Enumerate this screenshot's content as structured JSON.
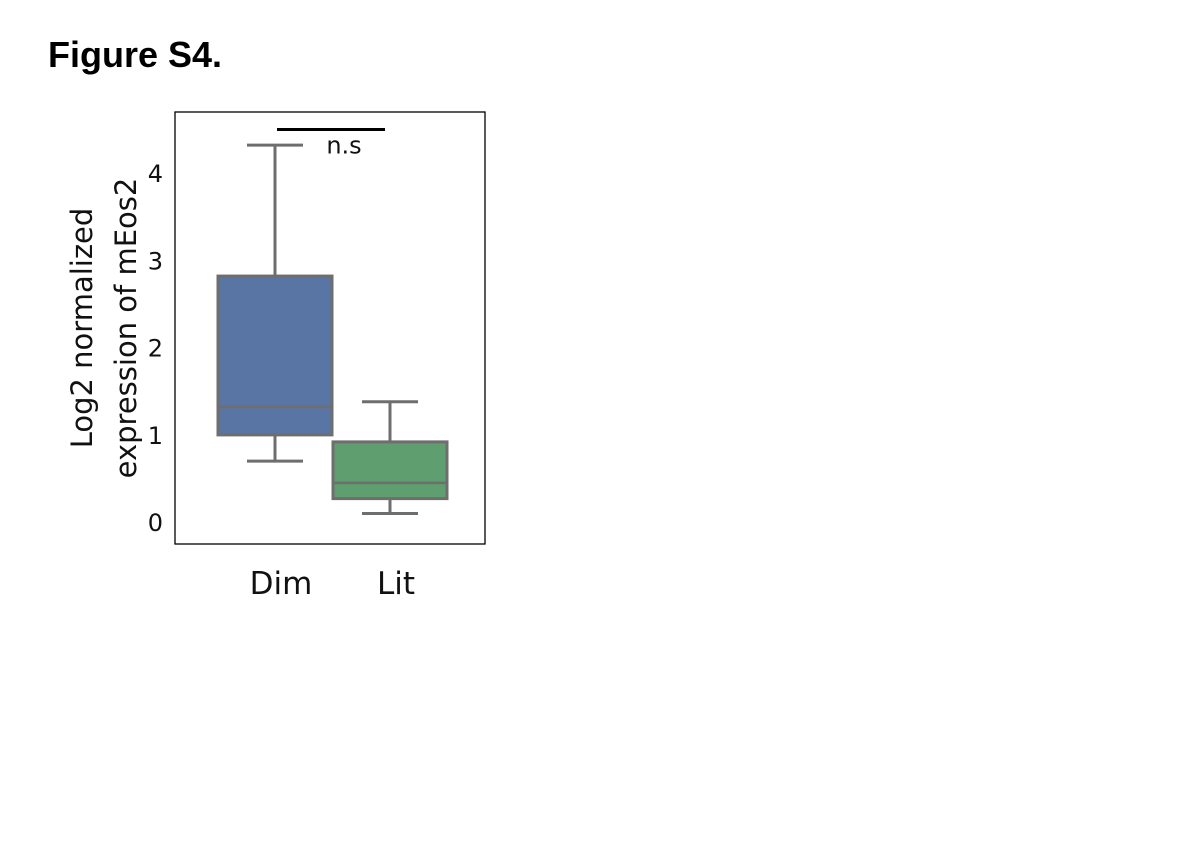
{
  "figure": {
    "title": "Figure S4."
  },
  "chart_data": {
    "type": "box",
    "title": "",
    "ylabel": [
      "Log2 normalized",
      "expression of mEos2"
    ],
    "xlabel": "",
    "ylim": [
      -0.25,
      4.7
    ],
    "yticks": [
      0,
      1,
      2,
      3,
      4
    ],
    "categories": [
      "Dim",
      "Lit"
    ],
    "colors": [
      "#5875A4",
      "#5F9E6E"
    ],
    "outline_color": "#6e6e6e",
    "boxes": [
      {
        "name": "Dim",
        "whisker_low": 0.7,
        "q1": 1.0,
        "median": 1.32,
        "q3": 2.82,
        "whisker_high": 4.32
      },
      {
        "name": "Lit",
        "whisker_low": 0.1,
        "q1": 0.27,
        "median": 0.45,
        "q3": 0.92,
        "whisker_high": 1.38
      }
    ],
    "annotation": {
      "text": "n.s",
      "y": 4.5
    }
  }
}
